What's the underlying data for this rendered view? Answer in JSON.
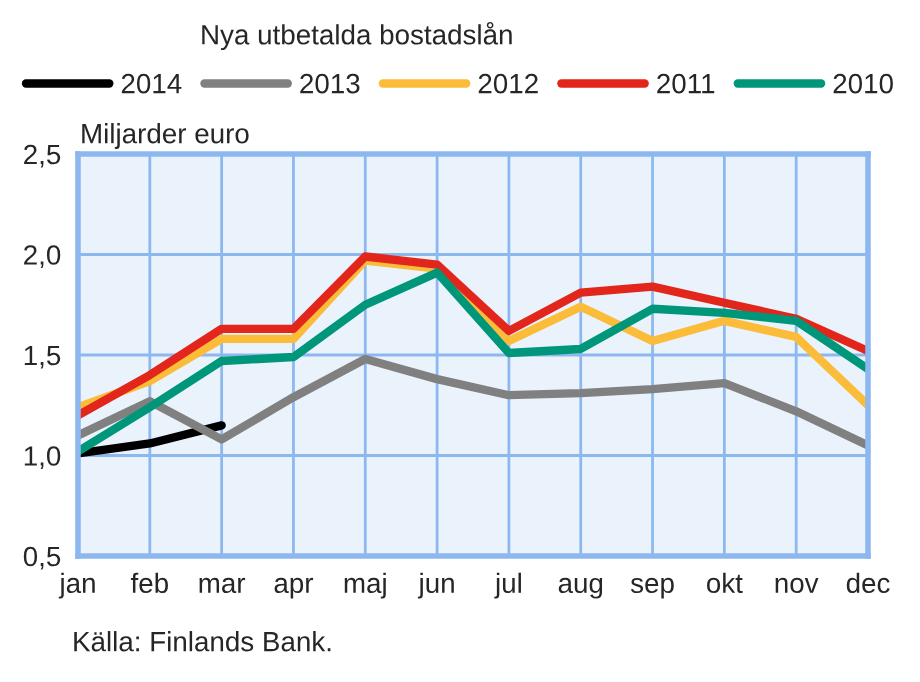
{
  "chart_data": {
    "type": "line",
    "title": "Nya utbetalda bostadslån",
    "ylabel": "Miljarder euro",
    "annotations": [
      "Källa: Finlands Bank."
    ],
    "categories": [
      "jan",
      "feb",
      "mar",
      "apr",
      "maj",
      "jun",
      "jul",
      "aug",
      "sep",
      "okt",
      "nov",
      "dec"
    ],
    "series": [
      {
        "name": "2014",
        "color": "#000000",
        "values": [
          1.01,
          1.06,
          1.15,
          null,
          null,
          null,
          null,
          null,
          null,
          null,
          null,
          null
        ]
      },
      {
        "name": "2013",
        "color": "#808080",
        "values": [
          1.1,
          1.27,
          1.08,
          1.29,
          1.48,
          1.38,
          1.3,
          1.31,
          1.33,
          1.36,
          1.22,
          1.05
        ]
      },
      {
        "name": "2012",
        "color": "#fbbc3a",
        "values": [
          1.24,
          1.37,
          1.58,
          1.58,
          1.97,
          1.93,
          1.57,
          1.74,
          1.57,
          1.67,
          1.59,
          1.25
        ]
      },
      {
        "name": "2011",
        "color": "#e3261c",
        "values": [
          1.2,
          1.4,
          1.63,
          1.63,
          1.99,
          1.95,
          1.62,
          1.81,
          1.84,
          1.76,
          1.68,
          1.52
        ]
      },
      {
        "name": "2010",
        "color": "#00967a",
        "values": [
          1.02,
          1.24,
          1.47,
          1.49,
          1.75,
          1.91,
          1.51,
          1.53,
          1.73,
          1.71,
          1.67,
          1.43
        ]
      }
    ],
    "ylim": [
      0.5,
      2.5
    ],
    "yticks": [
      {
        "value": 0.5,
        "label": "0,5"
      },
      {
        "value": 1.0,
        "label": "1,0"
      },
      {
        "value": 1.5,
        "label": "1,5"
      },
      {
        "value": 2.0,
        "label": "2,0"
      },
      {
        "value": 2.5,
        "label": "2,5"
      }
    ],
    "grid": true,
    "legend": "top",
    "marker": "none",
    "line_style": "solid"
  }
}
